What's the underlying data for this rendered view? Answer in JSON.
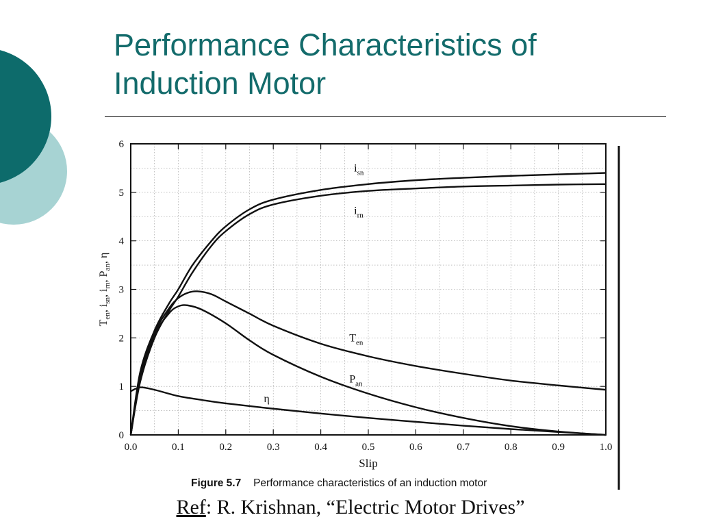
{
  "slide": {
    "title_line1": "Performance Characteristics of",
    "title_line2": "Induction Motor",
    "accent_dark": "#0d6b6b",
    "accent_light": "#a7d3d3",
    "title_color": "#136b6b"
  },
  "figure": {
    "label": "Figure 5.7",
    "caption": "Performance characteristics of an induction motor"
  },
  "reference": {
    "label": "Ref",
    "text": ": R. Krishnan, “Electric Motor Drives”"
  },
  "chart_data": {
    "type": "line",
    "xlabel": "Slip",
    "ylabel_parts": [
      "T",
      "en",
      ", i",
      "sn",
      ", i",
      "rn",
      ", P",
      "an",
      ", η"
    ],
    "xlim": [
      0,
      1
    ],
    "ylim": [
      0,
      6
    ],
    "x_ticks": [
      "0.0",
      "0.1",
      "0.2",
      "0.3",
      "0.4",
      "0.5",
      "0.6",
      "0.7",
      "0.8",
      "0.9",
      "1.0"
    ],
    "y_ticks": [
      "0",
      "1",
      "2",
      "3",
      "4",
      "5",
      "6"
    ],
    "grid": true,
    "series": [
      {
        "name": "i",
        "sub": "sn",
        "x": [
          0,
          0.02,
          0.05,
          0.08,
          0.1,
          0.13,
          0.17,
          0.2,
          0.25,
          0.3,
          0.4,
          0.5,
          0.6,
          0.7,
          0.8,
          0.9,
          1.0
        ],
        "y": [
          0,
          1.3,
          2.15,
          2.7,
          3.0,
          3.5,
          4.0,
          4.3,
          4.65,
          4.85,
          5.05,
          5.17,
          5.25,
          5.3,
          5.34,
          5.37,
          5.4
        ]
      },
      {
        "name": "i",
        "sub": "rn",
        "x": [
          0,
          0.02,
          0.05,
          0.08,
          0.1,
          0.13,
          0.17,
          0.2,
          0.25,
          0.3,
          0.4,
          0.5,
          0.6,
          0.7,
          0.8,
          0.9,
          1.0
        ],
        "y": [
          0,
          1.1,
          2.0,
          2.55,
          2.85,
          3.35,
          3.9,
          4.2,
          4.55,
          4.75,
          4.93,
          5.03,
          5.08,
          5.12,
          5.14,
          5.16,
          5.17
        ]
      },
      {
        "name": "T",
        "sub": "en",
        "x": [
          0,
          0.02,
          0.05,
          0.08,
          0.1,
          0.12,
          0.14,
          0.17,
          0.2,
          0.25,
          0.3,
          0.4,
          0.5,
          0.6,
          0.7,
          0.8,
          0.9,
          1.0
        ],
        "y": [
          0,
          1.2,
          2.1,
          2.6,
          2.82,
          2.93,
          2.96,
          2.9,
          2.75,
          2.5,
          2.25,
          1.88,
          1.62,
          1.42,
          1.26,
          1.12,
          1.02,
          0.93
        ]
      },
      {
        "name": "P",
        "sub": "an",
        "x": [
          0,
          0.02,
          0.05,
          0.08,
          0.1,
          0.12,
          0.15,
          0.2,
          0.25,
          0.3,
          0.4,
          0.5,
          0.6,
          0.7,
          0.8,
          0.9,
          1.0
        ],
        "y": [
          0,
          1.15,
          2.05,
          2.5,
          2.65,
          2.67,
          2.58,
          2.3,
          1.95,
          1.65,
          1.2,
          0.85,
          0.57,
          0.35,
          0.18,
          0.07,
          0.0
        ]
      },
      {
        "name": "η",
        "sub": "",
        "x": [
          0,
          0.02,
          0.05,
          0.1,
          0.15,
          0.2,
          0.3,
          0.4,
          0.5,
          0.6,
          0.7,
          0.8,
          0.9,
          1.0
        ],
        "y": [
          0.9,
          0.98,
          0.93,
          0.8,
          0.72,
          0.65,
          0.54,
          0.44,
          0.35,
          0.27,
          0.19,
          0.12,
          0.06,
          0.0
        ]
      }
    ],
    "annotations": [
      {
        "text": "i",
        "sub": "sn",
        "x": 0.47,
        "y": 5.43
      },
      {
        "text": "i",
        "sub": "rn",
        "x": 0.47,
        "y": 4.55
      },
      {
        "text": "T",
        "sub": "en",
        "x": 0.46,
        "y": 1.93
      },
      {
        "text": "P",
        "sub": "an",
        "x": 0.46,
        "y": 1.08
      },
      {
        "text": "η",
        "sub": "",
        "x": 0.28,
        "y": 0.68
      }
    ]
  }
}
